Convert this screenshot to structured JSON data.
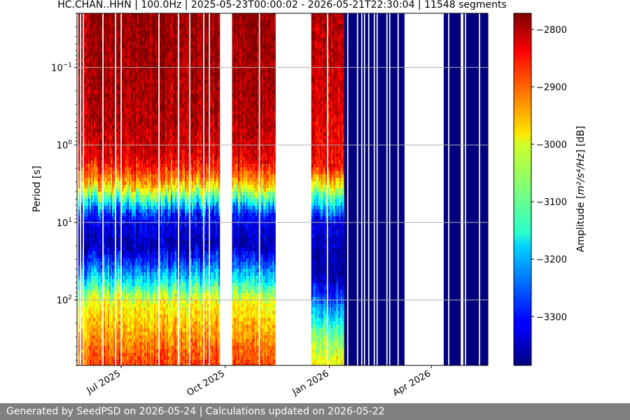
{
  "chart_data": {
    "type": "heatmap",
    "title": "HC.CHAN..HHN | 100.0Hz | 2025-05-23T00:00:02 - 2026-05-21T22:30:04 | 11548 segments",
    "xlabel": "",
    "ylabel": "Period [s]",
    "xlim": [
      "2025-05-23",
      "2026-05-21"
    ],
    "x_ticks": [
      {
        "date": "2025-07-01",
        "label": "Jul 2025"
      },
      {
        "date": "2025-10-01",
        "label": "Oct 2025"
      },
      {
        "date": "2026-01-01",
        "label": "Jan 2026"
      },
      {
        "date": "2026-04-01",
        "label": "Apr 2026"
      }
    ],
    "y_scale": "log",
    "y_inverted": true,
    "ylim": [
      0.02,
      700
    ],
    "y_ticks": [
      {
        "value": 0.1,
        "label": "10",
        "exp": "−1"
      },
      {
        "value": 1,
        "label": "10",
        "exp": "0"
      },
      {
        "value": 10,
        "label": "10",
        "exp": "1"
      },
      {
        "value": 100,
        "label": "10",
        "exp": "2"
      }
    ],
    "grid": true,
    "colormap": "jet",
    "colorbar": {
      "label_main": "Amplitude [",
      "label_math": "m²/s⁴/Hz",
      "label_end": "] [dB]",
      "min": -3385,
      "max": -2772,
      "ticks": [
        -2800,
        -2900,
        -3000,
        -3100,
        -3200,
        -3300
      ]
    },
    "data_segments": [
      {
        "start": "2025-05-23",
        "end": "2025-09-26",
        "kind": "full"
      },
      {
        "start": "2025-10-07",
        "end": "2025-11-14",
        "kind": "full"
      },
      {
        "start": "2025-12-16",
        "end": "2026-01-14",
        "kind": "partial_low_noise"
      },
      {
        "start": "2026-01-14",
        "end": "2026-03-08",
        "kind": "min_only"
      },
      {
        "start": "2026-04-12",
        "end": "2026-05-21",
        "kind": "min_only"
      }
    ],
    "spectrum_profile_db": [
      {
        "period": 0.02,
        "db": -2780
      },
      {
        "period": 0.5,
        "db": -2800
      },
      {
        "period": 1.5,
        "db": -2830
      },
      {
        "period": 3,
        "db": -2940
      },
      {
        "period": 5,
        "db": -3120
      },
      {
        "period": 8,
        "db": -3300
      },
      {
        "period": 20,
        "db": -3360
      },
      {
        "period": 50,
        "db": -3180
      },
      {
        "period": 100,
        "db": -3010
      },
      {
        "period": 700,
        "db": -2880
      }
    ],
    "low_noise_profile_db": [
      {
        "period": 0.02,
        "db": -2800
      },
      {
        "period": 2,
        "db": -2850
      },
      {
        "period": 5,
        "db": -3120
      },
      {
        "period": 10,
        "db": -3330
      },
      {
        "period": 50,
        "db": -3370
      },
      {
        "period": 300,
        "db": -3080
      },
      {
        "period": 700,
        "db": -3000
      }
    ]
  },
  "footer": {
    "text": "Generated by SeedPSD on 2026-05-24 | Calculations updated on 2026-05-22"
  }
}
